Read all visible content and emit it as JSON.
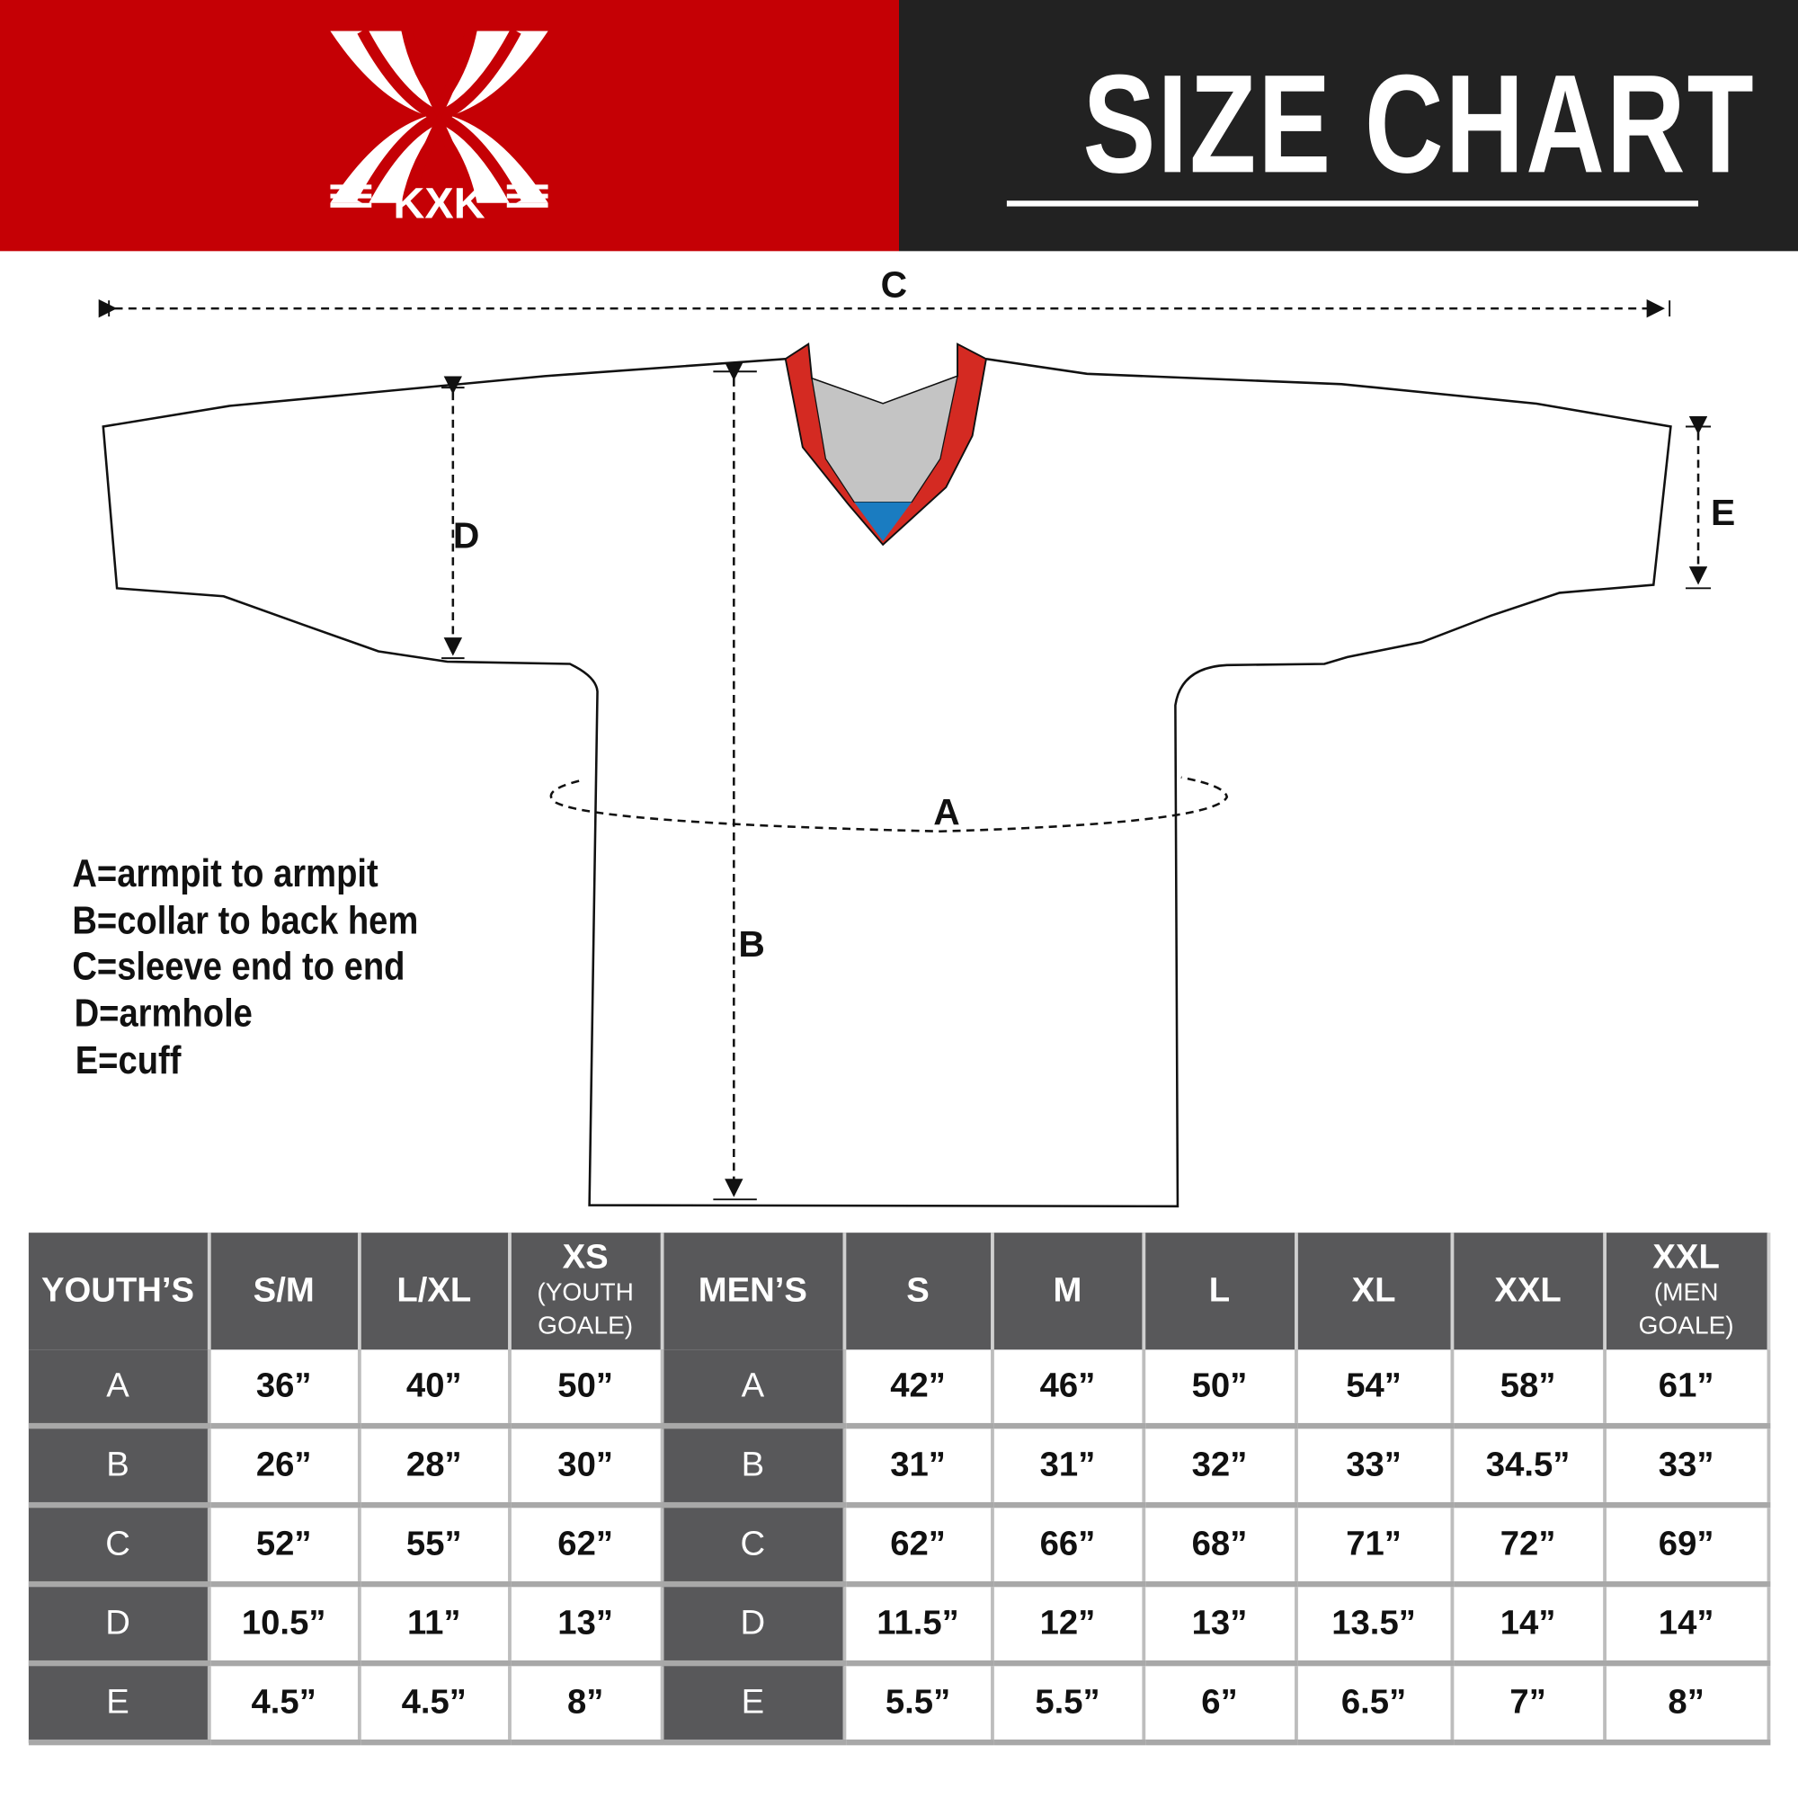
{
  "header": {
    "title": "SIZE CHART",
    "brand": "KXK",
    "colors": {
      "brand_red": "#c50005",
      "dark": "#222222",
      "table_header": "#58585a",
      "collar_red": "#d42a22",
      "collar_grey": "#c4c4c4",
      "collar_blue": "#1a7cc1"
    }
  },
  "diagram": {
    "labels": {
      "a": "A",
      "b": "B",
      "c": "C",
      "d": "D",
      "e": "E"
    }
  },
  "legend": [
    "A=armpit to armpit",
    "B=collar to back hem",
    "C=sleeve end to end",
    "D=armhole",
    "E=cuff"
  ],
  "table": {
    "headers": [
      {
        "main": "YOUTH’S",
        "sub": ""
      },
      {
        "main": "S/M",
        "sub": ""
      },
      {
        "main": "L/XL",
        "sub": ""
      },
      {
        "main": "XS",
        "sub": "(YOUTH GOALE)"
      },
      {
        "main": "MEN’S",
        "sub": ""
      },
      {
        "main": "S",
        "sub": ""
      },
      {
        "main": "M",
        "sub": ""
      },
      {
        "main": "L",
        "sub": ""
      },
      {
        "main": "XL",
        "sub": ""
      },
      {
        "main": "XXL",
        "sub": ""
      },
      {
        "main": "XXL",
        "sub": "(MEN GOALE)"
      }
    ],
    "rows": [
      [
        "A",
        "36”",
        "40”",
        "50”",
        "A",
        "42”",
        "46”",
        "50”",
        "54”",
        "58”",
        "61”"
      ],
      [
        "B",
        "26”",
        "28”",
        "30”",
        "B",
        "31”",
        "31”",
        "32”",
        "33”",
        "34.5”",
        "33”"
      ],
      [
        "C",
        "52”",
        "55”",
        "62”",
        "C",
        "62”",
        "66”",
        "68”",
        "71”",
        "72”",
        "69”"
      ],
      [
        "D",
        "10.5”",
        "11”",
        "13”",
        "D",
        "11.5”",
        "12”",
        "13”",
        "13.5”",
        "14”",
        "14”"
      ],
      [
        "E",
        "4.5”",
        "4.5”",
        "8”",
        "E",
        "5.5”",
        "5.5”",
        "6”",
        "6.5”",
        "7”",
        "8”"
      ]
    ]
  }
}
